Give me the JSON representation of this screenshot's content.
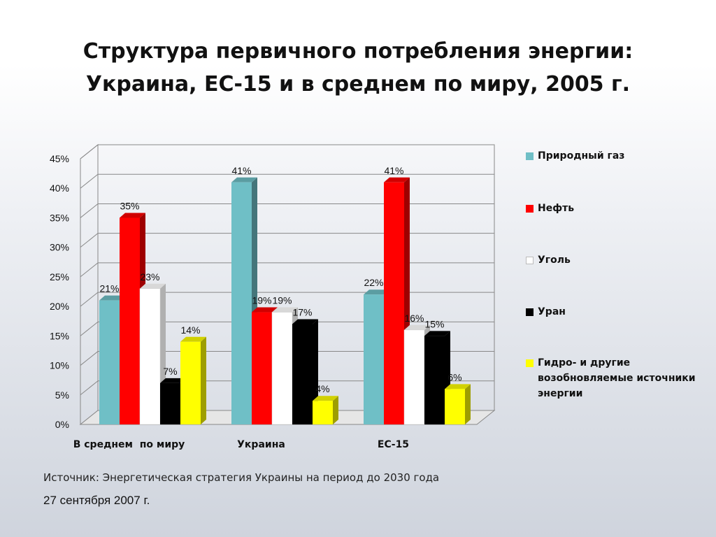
{
  "slide": {
    "title_line1": "Структура первичного потребления энергии:",
    "title_line2": "Украина, ЕС-15 и в среднем по миру, 2005 г.",
    "source": "Источник: Энергетическая стратегия Украины на период до 2030 года",
    "date": "27 сентября 2007 г."
  },
  "chart_data": {
    "type": "bar",
    "title": "",
    "xlabel": "",
    "ylabel": "",
    "ylim": [
      0,
      45
    ],
    "y_ticks": [
      "0%",
      "5%",
      "10%",
      "15%",
      "20%",
      "25%",
      "30%",
      "35%",
      "40%",
      "45%"
    ],
    "grid": true,
    "legend_position": "right",
    "categories": [
      "В среднем  по миру",
      "Украина",
      "ЕС-15"
    ],
    "series": [
      {
        "name": "Природный газ",
        "color": "#6fbfc6",
        "values": [
          21,
          41,
          22
        ],
        "labels": [
          "21%",
          "41%",
          "22%"
        ]
      },
      {
        "name": "Нефть",
        "color": "#ff0000",
        "values": [
          35,
          19,
          41
        ],
        "labels": [
          "35%",
          "19%",
          "41%"
        ]
      },
      {
        "name": "Уголь",
        "color": "#ffffff",
        "values": [
          23,
          19,
          16
        ],
        "labels": [
          "23%",
          "19%",
          "16%"
        ]
      },
      {
        "name": "Уран",
        "color": "#000000",
        "values": [
          7,
          17,
          15
        ],
        "labels": [
          "7%",
          "17%",
          "15%"
        ]
      },
      {
        "name": "Гидро- и другие возобновляемые источники энергии",
        "color": "#ffff00",
        "values": [
          14,
          4,
          6
        ],
        "labels": [
          "14%",
          "4%",
          "6%"
        ]
      }
    ]
  }
}
